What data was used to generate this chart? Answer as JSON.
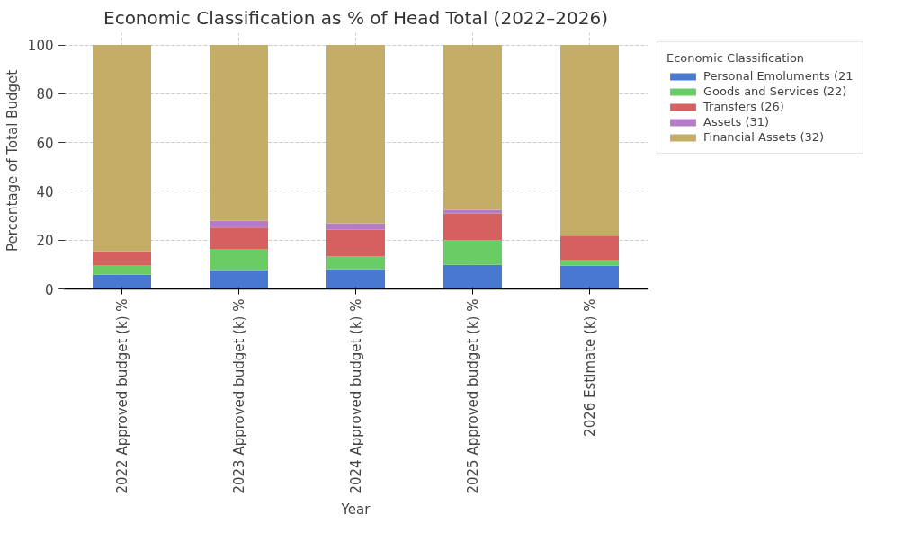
{
  "chart_data": {
    "type": "bar",
    "stacked": true,
    "title": "Economic Classification as % of Head Total (2022–2026)",
    "xlabel": "Year",
    "ylabel": "Percentage of Total Budget",
    "legend_title": "Economic Classification",
    "legend": "top right",
    "grid": true,
    "categories": [
      "2022 Approved budget (k) %",
      "2023 Approved budget (k) %",
      "2024 Approved budget (k) %",
      "2025 Approved budget (k) %",
      "2026 Estimate (k) %"
    ],
    "ylim": [
      0,
      105
    ],
    "yticks": [
      0,
      20,
      40,
      60,
      80,
      100
    ],
    "series": [
      {
        "name": "Personal Emoluments (21",
        "color": "#4878d0",
        "values": [
          5.8,
          7.7,
          8.0,
          9.9,
          9.5
        ]
      },
      {
        "name": "Goods and Services (22)",
        "color": "#6acc64",
        "values": [
          4.0,
          8.7,
          5.3,
          10.1,
          2.5
        ]
      },
      {
        "name": "Transfers (26)",
        "color": "#d65f5f",
        "values": [
          5.7,
          8.7,
          10.9,
          10.9,
          9.8
        ]
      },
      {
        "name": "Assets (31)",
        "color": "#b47cc7",
        "values": [
          0,
          2.8,
          2.7,
          1.5,
          0
        ]
      },
      {
        "name": "Financial Assets (32)",
        "color": "#c4ad66",
        "values": [
          84.5,
          72.1,
          73.1,
          67.6,
          78.2
        ]
      }
    ]
  }
}
